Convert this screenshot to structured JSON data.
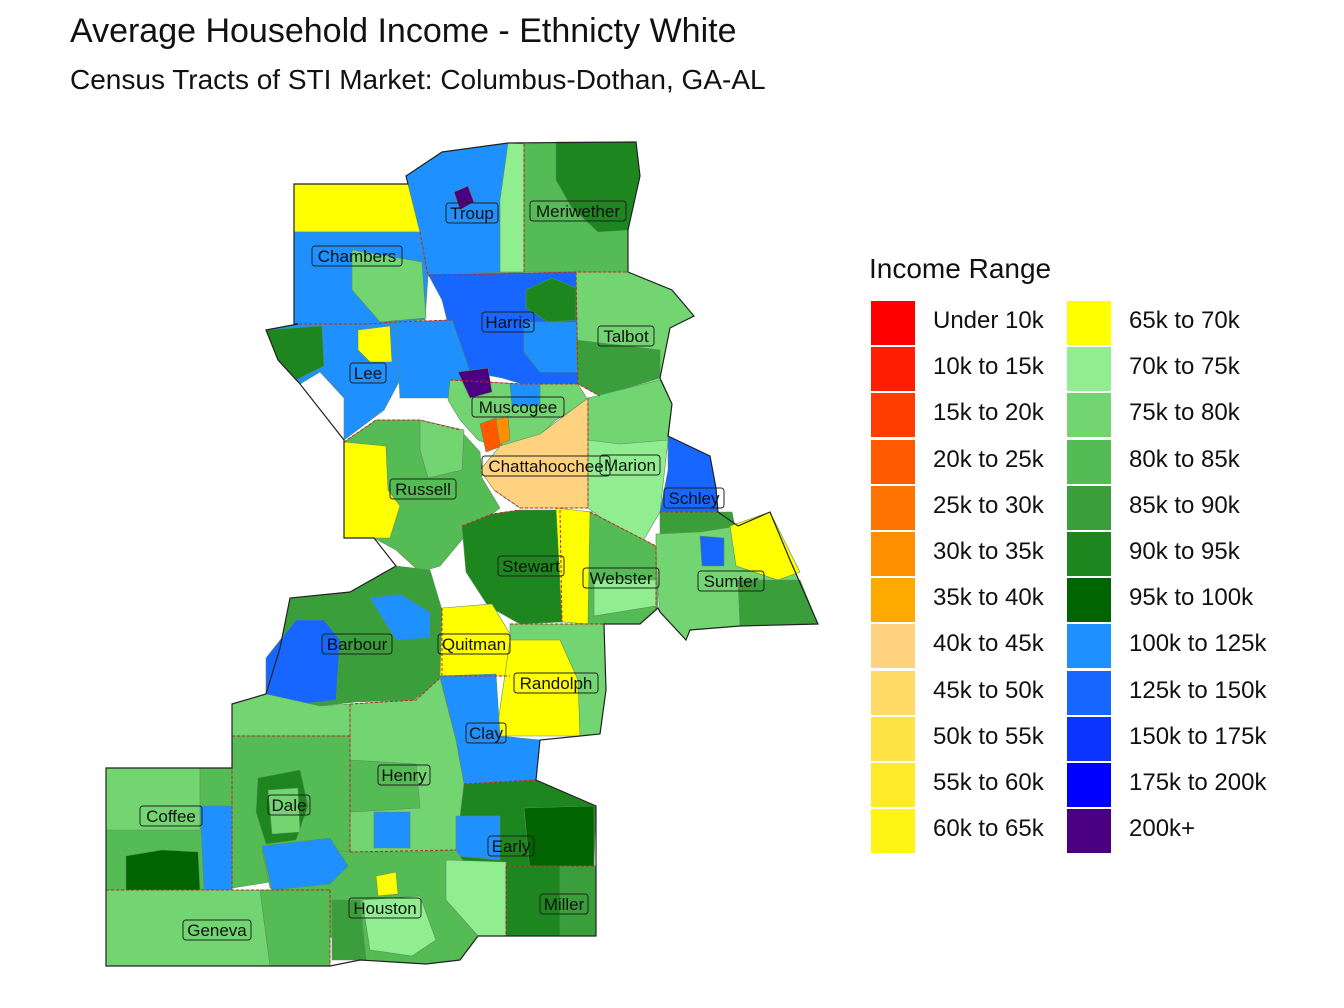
{
  "title": "Average Household Income - Ethnicty White",
  "subtitle": "Census Tracts of STI Market: Columbus-Dothan,  GA-AL",
  "legend": {
    "title": "Income Range",
    "items": [
      {
        "label": "Under 10k",
        "color": "#FF0000"
      },
      {
        "label": "10k to 15k",
        "color": "#FF1F00"
      },
      {
        "label": "15k to 20k",
        "color": "#FF3D00"
      },
      {
        "label": "20k to 25k",
        "color": "#FF5A00"
      },
      {
        "label": "25k to 30k",
        "color": "#FF7400"
      },
      {
        "label": "30k to 35k",
        "color": "#FF8F00"
      },
      {
        "label": "35k to 40k",
        "color": "#FFAA00"
      },
      {
        "label": "40k to 45k",
        "color": "#FFD27F"
      },
      {
        "label": "45k to 50k",
        "color": "#FFDA66"
      },
      {
        "label": "50k to 55k",
        "color": "#FFE344"
      },
      {
        "label": "55k to 60k",
        "color": "#FFEB2A"
      },
      {
        "label": "60k to 65k",
        "color": "#FFF514"
      },
      {
        "label": "65k to 70k",
        "color": "#FFFF00"
      },
      {
        "label": "70k to 75k",
        "color": "#90EE90"
      },
      {
        "label": "75k to 80k",
        "color": "#72D572"
      },
      {
        "label": "80k to 85k",
        "color": "#55BB55"
      },
      {
        "label": "85k to 90k",
        "color": "#3A9F3A"
      },
      {
        "label": "90k to 95k",
        "color": "#1E861E"
      },
      {
        "label": "95k to 100k",
        "color": "#006400"
      },
      {
        "label": "100k to 125k",
        "color": "#1E90FF"
      },
      {
        "label": "125k to 150k",
        "color": "#1666FF"
      },
      {
        "label": "150k to 175k",
        "color": "#0B35FF"
      },
      {
        "label": "175k to 200k",
        "color": "#0000FF"
      },
      {
        "label": "200k+",
        "color": "#4B0082"
      }
    ]
  },
  "counties": {
    "troup": "Troup",
    "meriwether": "Meriwether",
    "chambers": "Chambers",
    "harris": "Harris",
    "talbot": "Talbot",
    "lee": "Lee",
    "muscogee": "Muscogee",
    "chattahoochee": "Chattahoochee",
    "marion": "Marion",
    "russell": "Russell",
    "schley": "Schley",
    "stewart": "Stewart",
    "webster": "Webster",
    "sumter": "Sumter",
    "barbour": "Barbour",
    "quitman": "Quitman",
    "randolph": "Randolph",
    "clay": "Clay",
    "henry": "Henry",
    "dale": "Dale",
    "coffee": "Coffee",
    "early": "Early",
    "houston": "Houston",
    "miller": "Miller",
    "geneva": "Geneva"
  }
}
